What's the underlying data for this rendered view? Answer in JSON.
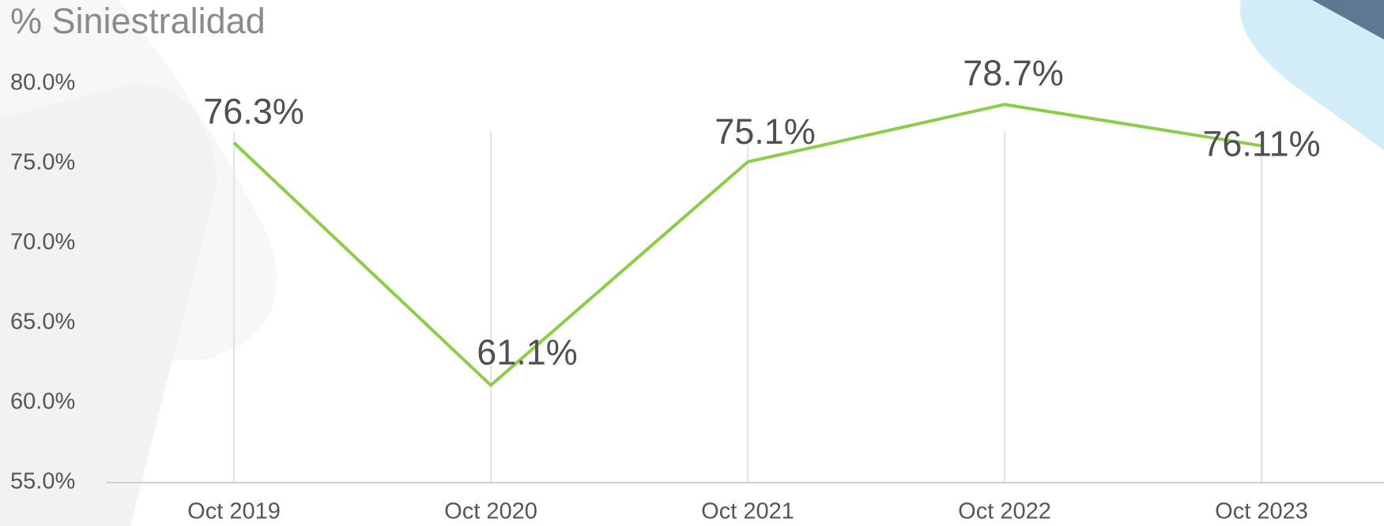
{
  "chart_data": {
    "type": "line",
    "title": "% Siniestralidad",
    "categories": [
      "Oct 2019",
      "Oct 2020",
      "Oct 2021",
      "Oct 2022",
      "Oct 2023"
    ],
    "series": [
      {
        "name": "% Siniestralidad",
        "color": "#8dcc4a",
        "values": [
          76.3,
          61.1,
          75.1,
          78.7,
          76.11
        ],
        "value_labels": [
          "76.3%",
          "61.1%",
          "75.1%",
          "78.7%",
          "76.11%"
        ]
      }
    ],
    "ylim": [
      55,
      80
    ],
    "yticks": [
      {
        "value": 55,
        "label": "55.0%"
      },
      {
        "value": 60,
        "label": "60.0%"
      },
      {
        "value": 65,
        "label": "65.0%"
      },
      {
        "value": 70,
        "label": "70.0%"
      },
      {
        "value": 75,
        "label": "75.0%"
      },
      {
        "value": 80,
        "label": "80.0%"
      }
    ],
    "grid": "x"
  }
}
